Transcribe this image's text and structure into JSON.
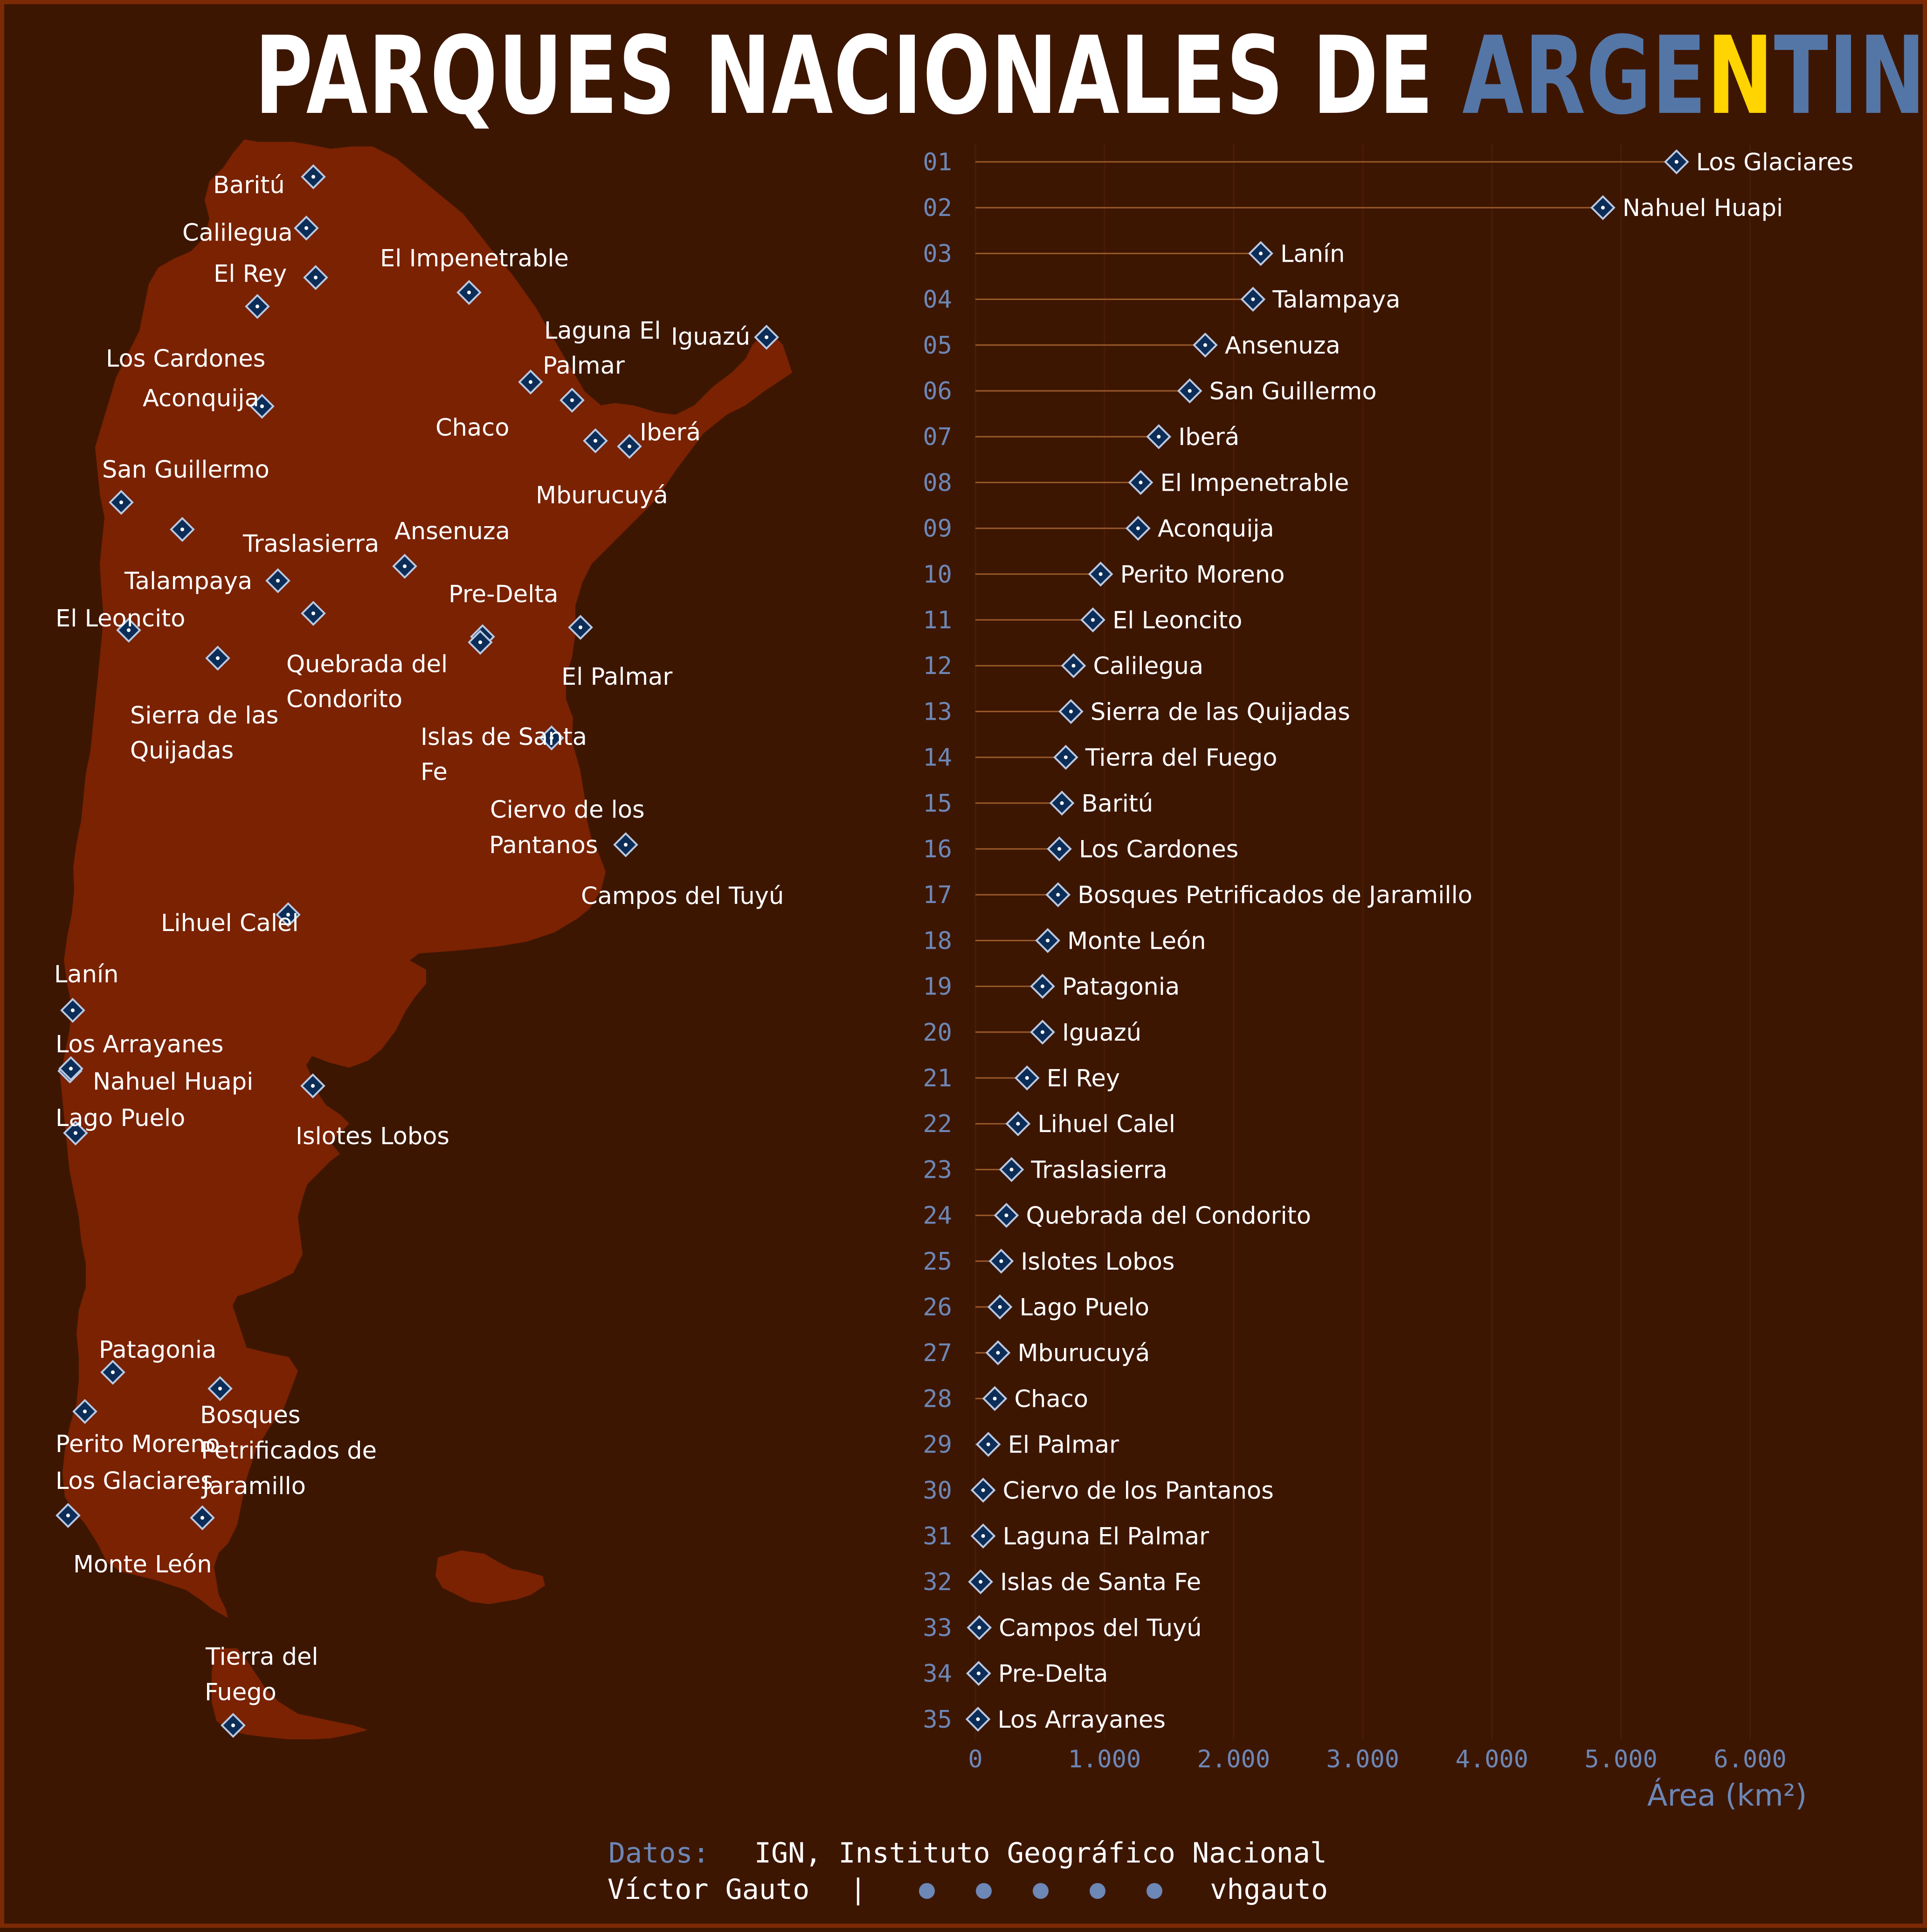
{
  "title": {
    "parts": [
      {
        "text": "PARQUES NACIONALES DE ",
        "color": "#ffffff"
      },
      {
        "text": "ARGE",
        "color": "#5476a6"
      },
      {
        "text": "N",
        "color": "#ffd400"
      },
      {
        "text": "TI",
        "color": "#5476a6"
      },
      {
        "text": "NA",
        "color": "#5476a6"
      }
    ]
  },
  "colors": {
    "background": "#3d1602",
    "land": "#7a2202",
    "marker": "#0c2d57",
    "accent": "#6d87b6",
    "stem": "#9a5a2a"
  },
  "map_labels": [
    "Baritú",
    "Calilegua",
    "El Rey",
    "Los Cardones",
    "Aconquija",
    "El Impenetrable",
    "Laguna El",
    "Palmar",
    "Iguazú",
    "Chaco",
    "Iberá",
    "Mburucuyá",
    "San Guillermo",
    "Ansenuza",
    "Traslasierra",
    "Talampaya",
    "Pre-Delta",
    "El Leoncito",
    "Quebrada del",
    "Condorito",
    "El Palmar",
    "Sierra de las",
    "Quijadas",
    "Islas de Santa",
    "Fe",
    "Ciervo de los",
    "Pantanos",
    "Campos del Tuyú",
    "Lihuel Calel",
    "Lanín",
    "Los Arrayanes",
    "Nahuel Huapi",
    "Lago Puelo",
    "Islotes Lobos",
    "Patagonia",
    "Bosques",
    "Petrificados de",
    "Jaramillo",
    "Perito Moreno",
    "Los Glaciares",
    "Monte León",
    "Tierra del",
    "Fuego"
  ],
  "chart_data": {
    "type": "lollipop",
    "xlabel": "Área (km²)",
    "xlim": [
      0,
      6200
    ],
    "xticks": [
      0,
      1000,
      2000,
      3000,
      4000,
      5000,
      6000
    ],
    "xtick_labels": [
      "0",
      "1.000",
      "2.000",
      "3.000",
      "4.000",
      "5.000",
      "6.000"
    ],
    "ranks": [
      "01",
      "02",
      "03",
      "04",
      "05",
      "06",
      "07",
      "08",
      "09",
      "10",
      "11",
      "12",
      "13",
      "14",
      "15",
      "16",
      "17",
      "18",
      "19",
      "20",
      "21",
      "22",
      "23",
      "24",
      "25",
      "26",
      "27",
      "28",
      "29",
      "30",
      "31",
      "32",
      "33",
      "34",
      "35"
    ],
    "categories": [
      "Los Glaciares",
      "Nahuel Huapi",
      "Lanín",
      "Talampaya",
      "Ansenuza",
      "San Guillermo",
      "Iberá",
      "El Impenetrable",
      "Aconquija",
      "Perito Moreno",
      "El Leoncito",
      "Calilegua",
      "Sierra de las Quijadas",
      "Tierra del Fuego",
      "Baritú",
      "Los Cardones",
      "Bosques Petrificados de Jaramillo",
      "Monte León",
      "Patagonia",
      "Iguazú",
      "El Rey",
      "Lihuel Calel",
      "Traslasierra",
      "Quebrada del Condorito",
      "Islotes Lobos",
      "Lago Puelo",
      "Mburucuyá",
      "Chaco",
      "El Palmar",
      "Ciervo de los Pantanos",
      "Laguna El Palmar",
      "Islas de Santa Fe",
      "Campos del Tuyú",
      "Pre-Delta",
      "Los Arrayanes"
    ],
    "values": [
      5430,
      4860,
      2210,
      2150,
      1780,
      1660,
      1420,
      1280,
      1260,
      970,
      910,
      760,
      740,
      700,
      670,
      650,
      640,
      560,
      520,
      520,
      400,
      330,
      280,
      240,
      200,
      190,
      175,
      150,
      100,
      60,
      60,
      40,
      30,
      25,
      20
    ]
  },
  "footer": {
    "data_label": "Datos:",
    "data_source": "IGN, Instituto Geográfico Nacional",
    "author": "Víctor Gauto",
    "separator": "|",
    "handle": "vhgauto",
    "icons": [
      "github-icon",
      "twitter-icon",
      "instagram-icon",
      "mastodon-icon",
      "bluesky-icon"
    ]
  }
}
